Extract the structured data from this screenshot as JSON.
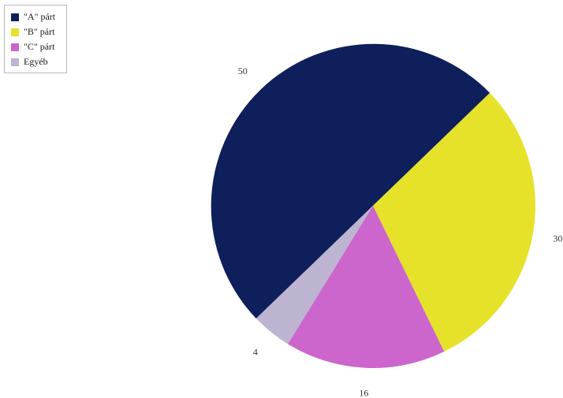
{
  "chart_data": {
    "type": "pie",
    "categories": [
      "\"A\" párt",
      "\"B\" párt",
      "\"C\" párt",
      "Egyéb"
    ],
    "values": [
      50,
      30,
      16,
      4
    ],
    "colors": [
      "#0e1f5b",
      "#e6e229",
      "#cc66cc",
      "#bcb4d0"
    ],
    "data_labels": [
      "50",
      "30",
      "16",
      "4"
    ],
    "legend_placement": "top-left",
    "start_angle_deg_clockwise_from_top": 226,
    "title": ""
  }
}
